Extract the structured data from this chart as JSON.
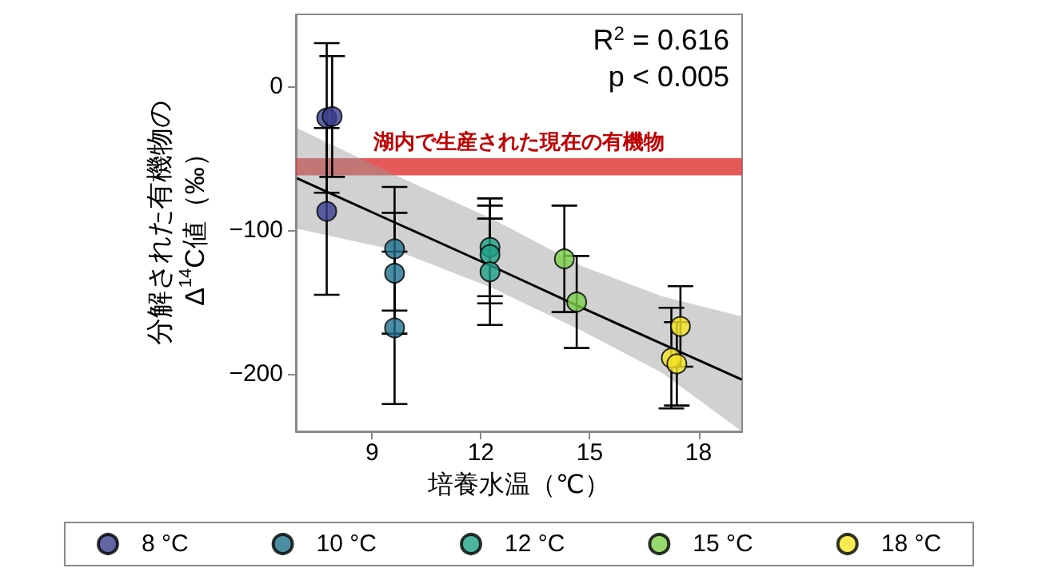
{
  "chart_data": {
    "type": "scatter",
    "xlabel": "培養水温（℃）",
    "ylabel": "分解された有機物の\nΔ$^{14}$C値（‰）",
    "xlim": [
      6.9,
      19.2
    ],
    "ylim": [
      -240,
      50
    ],
    "xticks": [
      9,
      12,
      15,
      18
    ],
    "yticks": [
      -200,
      -100,
      0
    ],
    "grid": false,
    "legend": "bottom",
    "marker": "circle",
    "annotations": [
      "R$^{2}$ = 0.616",
      "p < 0.005"
    ],
    "bands": [
      {
        "axis": "y",
        "from": -62,
        "to": -50,
        "label": "湖内で生産された現在の有機物",
        "color": "#e03c3c"
      }
    ],
    "series": [
      {
        "name": "8 °C",
        "color": "#3b3f8f",
        "x": [
          7.75,
          7.9,
          7.75
        ],
        "values": [
          -22,
          -21,
          -87
        ],
        "errors": [
          52,
          42,
          58
        ]
      },
      {
        "name": "10 °C",
        "color": "#21718c",
        "x": [
          9.62,
          9.62,
          9.62
        ],
        "values": [
          -113,
          -130,
          -168
        ],
        "errors": [
          43,
          42,
          53
        ]
      },
      {
        "name": "12 °C",
        "color": "#1fa187",
        "x": [
          12.25,
          12.25,
          12.25
        ],
        "values": [
          -112,
          -117,
          -129
        ],
        "errors": [
          34,
          34,
          37
        ]
      },
      {
        "name": "15 °C",
        "color": "#7ccf4b",
        "x": [
          14.3,
          14.64
        ],
        "values": [
          -120,
          -150
        ],
        "errors": [
          37,
          32
        ]
      },
      {
        "name": "18 °C",
        "color": "#f5e626",
        "x": [
          17.5,
          17.25,
          17.4
        ],
        "values": [
          -167,
          -189,
          -193
        ],
        "errors": [
          28,
          35,
          29
        ]
      },
      {
        "type": "line",
        "marker": "none",
        "color": "#000000",
        "line_style": "solid",
        "x": [
          6.93,
          9.65,
          12.29,
          14.78,
          16.98,
          19.19
        ],
        "values": [
          -64,
          -95,
          -125,
          -154,
          -179,
          -204
        ],
        "lower": [
          -99,
          -114,
          -140,
          -170,
          -199,
          -240
        ],
        "upper": [
          -29,
          -62,
          -92,
          -125,
          -146,
          -160
        ]
      }
    ]
  }
}
